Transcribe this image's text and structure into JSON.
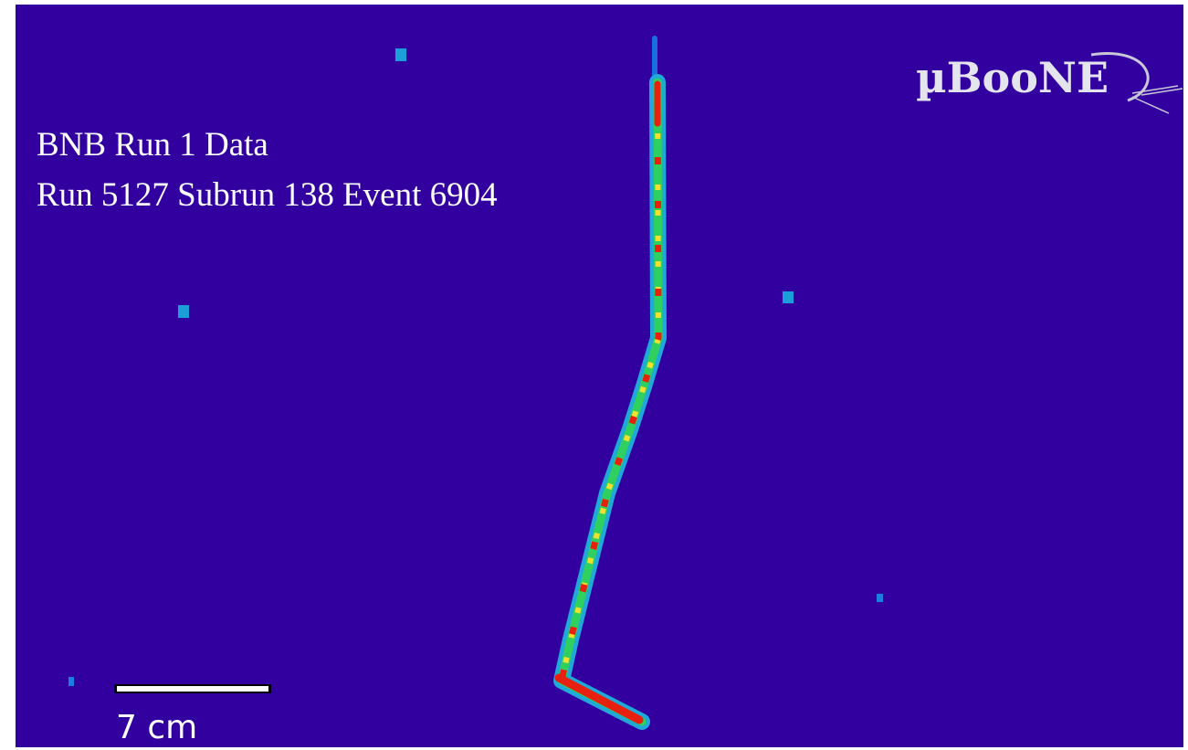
{
  "logo": "µBooNE",
  "caption": {
    "line1": "BNB Run 1 Data",
    "line2": "Run 5127 Subrun 138 Event 6904"
  },
  "scale_bar": {
    "label": "7 cm"
  }
}
